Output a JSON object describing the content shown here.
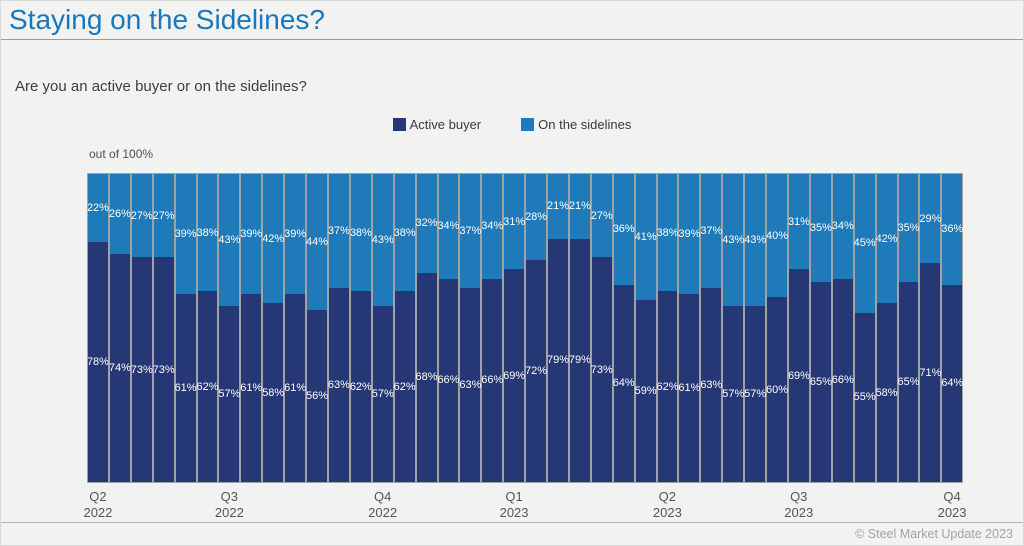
{
  "page": {
    "title": "Staying on the Sidelines?",
    "question": "Are you an active buyer or on the sidelines?",
    "axis_note": "out of 100%",
    "copyright": "© Steel Market Update 2023"
  },
  "colors": {
    "title_blue": "#1878be",
    "active_buyer": "#263776",
    "on_the_sidelines": "#1e7ab8",
    "bar_border_gray": "#a2a2a2",
    "background": "#f2f2f1"
  },
  "legend": [
    {
      "label": "Active buyer",
      "color": "#263776"
    },
    {
      "label": "On the sidelines",
      "color": "#1e7ab8"
    }
  ],
  "chart_data": {
    "type": "bar",
    "stacked": true,
    "unit": "%",
    "title": "Staying on the Sidelines?",
    "question": "Are you an active buyer or on the sidelines?",
    "ylabel_note": "out of 100%",
    "ylim": [
      0,
      100
    ],
    "grid": false,
    "legend_position": "top-center",
    "num_bars": 40,
    "series": [
      {
        "name": "Active buyer",
        "color": "#263776",
        "values": [
          78,
          74,
          73,
          73,
          61,
          62,
          57,
          61,
          58,
          61,
          56,
          63,
          62,
          57,
          62,
          68,
          66,
          63,
          66,
          69,
          72,
          79,
          79,
          73,
          64,
          59,
          62,
          61,
          63,
          57,
          57,
          60,
          69,
          65,
          66,
          55,
          58,
          65,
          71,
          64
        ]
      },
      {
        "name": "On the sidelines",
        "color": "#1e7ab8",
        "values": [
          22,
          26,
          27,
          27,
          39,
          38,
          43,
          39,
          42,
          39,
          44,
          37,
          38,
          43,
          38,
          32,
          34,
          37,
          34,
          31,
          28,
          21,
          21,
          27,
          36,
          41,
          38,
          39,
          37,
          43,
          43,
          40,
          31,
          35,
          34,
          45,
          42,
          35,
          29,
          36
        ]
      }
    ],
    "x_ticks": [
      {
        "quarter": "Q2",
        "year": "2022",
        "bar_index": 0
      },
      {
        "quarter": "Q3",
        "year": "2022",
        "bar_index": 6
      },
      {
        "quarter": "Q4",
        "year": "2022",
        "bar_index": 13
      },
      {
        "quarter": "Q1",
        "year": "2023",
        "bar_index": 19
      },
      {
        "quarter": "Q2",
        "year": "2023",
        "bar_index": 26
      },
      {
        "quarter": "Q3",
        "year": "2023",
        "bar_index": 32
      },
      {
        "quarter": "Q4",
        "year": "2023",
        "bar_index": 39
      }
    ]
  }
}
